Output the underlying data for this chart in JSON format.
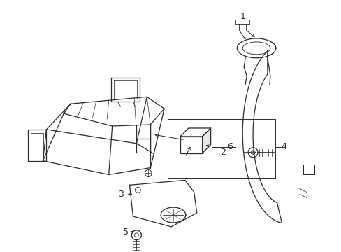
{
  "bg_color": "#ffffff",
  "line_color": "#2a2a2a",
  "figsize": [
    4.89,
    3.6
  ],
  "dpi": 100
}
